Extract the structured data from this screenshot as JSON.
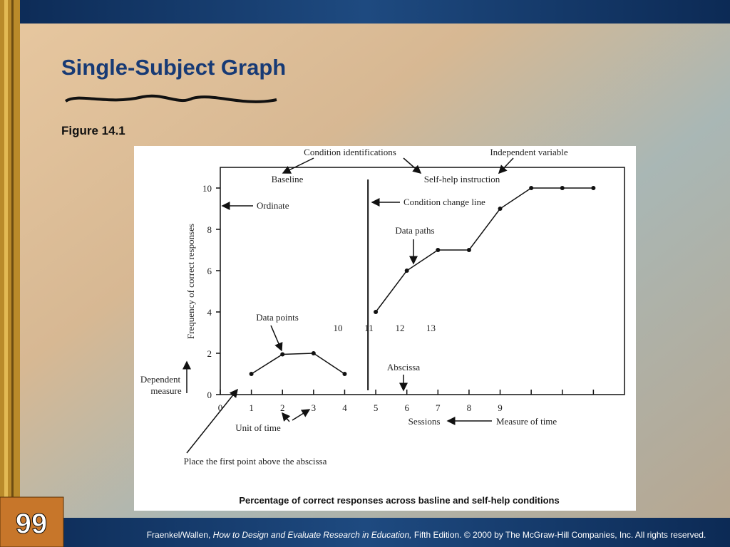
{
  "slide": {
    "title": "Single-Subject Graph",
    "figure_label": "Figure 14.1",
    "page_number": "99",
    "footer": [
      "Fraenkel/Wallen, ",
      "How to Design and Evaluate Research in Education,",
      " Fifth Edition. © 2000 by The McGraw-Hill Companies, Inc. All rights reserved."
    ]
  },
  "chart_data": {
    "type": "line",
    "caption": "Percentage of correct responses across basline and self-help conditions",
    "xlabel": "Sessions",
    "ylabel": "Frequency of correct responses",
    "series": [
      {
        "name": "Baseline",
        "color": "#111111",
        "x": [
          1,
          2,
          3,
          4
        ],
        "values": [
          1,
          1.95,
          2,
          1
        ]
      },
      {
        "name": "Self-help instruction",
        "color": "#111111",
        "x": [
          5,
          6,
          7,
          8,
          9,
          10,
          11,
          12
        ],
        "values": [
          4,
          6,
          7,
          7,
          9,
          10,
          10,
          10
        ]
      }
    ],
    "condition_change_x": 4.75,
    "xlim": [
      0,
      13
    ],
    "xticks": [
      0,
      1,
      2,
      3,
      4,
      5,
      6,
      7,
      8,
      9
    ],
    "minor_xticks": [
      10,
      11,
      12
    ],
    "ylim": [
      0,
      11
    ],
    "yticks": [
      0,
      2,
      4,
      6,
      8,
      10
    ],
    "grid": false,
    "stray_labels": [
      "10",
      "11",
      "12",
      "13"
    ],
    "annotations": {
      "condition_identifications": "Condition identifications",
      "independent_variable": "Independent variable",
      "ordinate": "Ordinate",
      "condition_change_line": "Condition change line",
      "data_paths": "Data paths",
      "data_points": "Data points",
      "abscissa": "Abscissa",
      "dependent_measure": [
        "Dependent",
        "measure"
      ],
      "unit_of_time": "Unit of time",
      "first_point": "Place the first point above the abscissa",
      "measure_of_time": "Measure of time"
    }
  }
}
